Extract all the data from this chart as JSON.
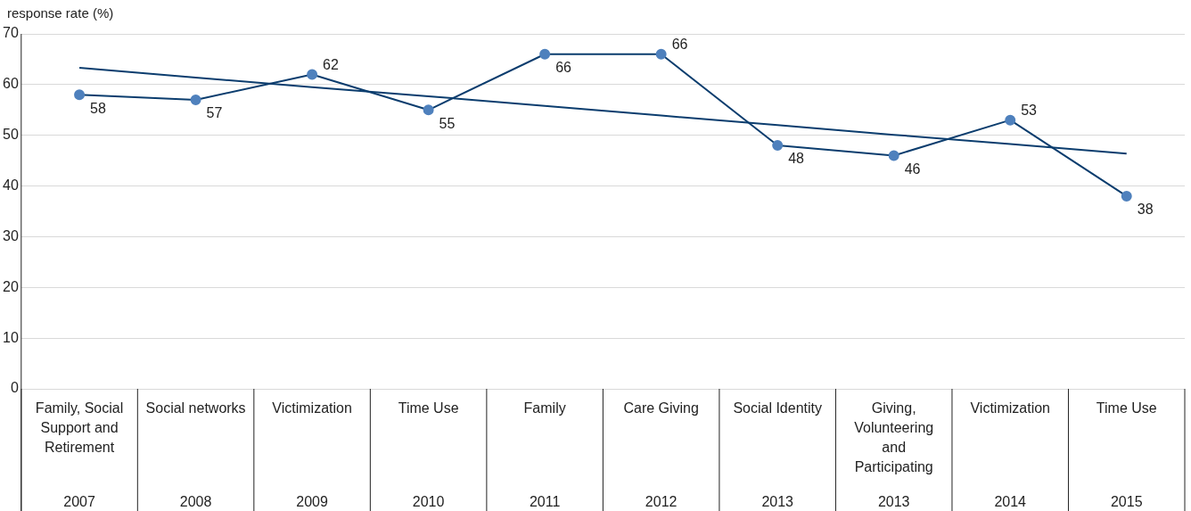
{
  "chart_data": {
    "type": "line",
    "ylabel": "response rate (%)",
    "categories": [
      "Family, Social Support and Retirement\n2007",
      "Social networks\n2008",
      "Victimization\n2009",
      "Time Use\n2010",
      "Family\n2011",
      "Care Giving\n2012",
      "Social Identity\n2013",
      "Giving, Volunteering and Participating\n2013",
      "Victimization\n2014",
      "Time Use\n2015"
    ],
    "series": [
      {
        "color": "#0b3d6e",
        "values": [
          58,
          57,
          62,
          55,
          66,
          66,
          48,
          46,
          53,
          38
        ],
        "value_labels": [
          "58",
          "57",
          "62",
          "55",
          "66",
          "66",
          "48",
          "46",
          "53",
          "38"
        ],
        "marker": "circle"
      },
      {
        "color": "#0b3d6e",
        "values": [
          63.3,
          61.4,
          59.5,
          57.7,
          55.8,
          53.9,
          52.0,
          50.1,
          48.3,
          46.4
        ],
        "marker": "none"
      }
    ],
    "ylim": [
      0,
      70
    ],
    "yticks": [
      0,
      10,
      20,
      30,
      40,
      50,
      60,
      70
    ],
    "grid": "y",
    "legend": false,
    "line_style": "solid"
  }
}
